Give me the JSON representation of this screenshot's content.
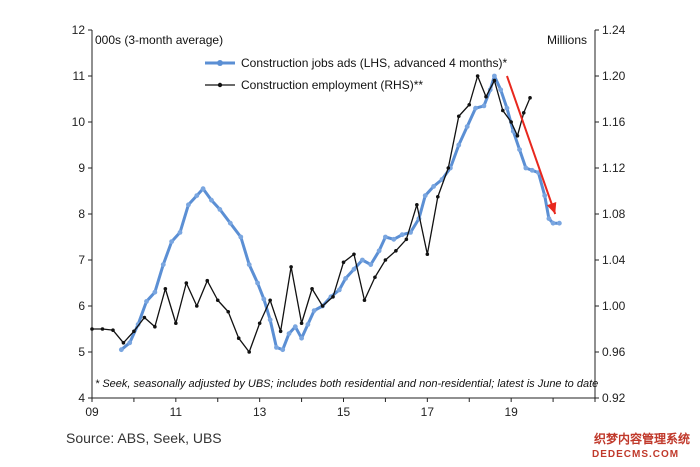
{
  "chart_data": {
    "type": "line",
    "left_axis_label": "000s (3-month average)",
    "right_axis_label": "Millions",
    "x_ticks": [
      "09",
      "11",
      "13",
      "15",
      "17",
      "19"
    ],
    "x_tick_values": [
      2009,
      2011,
      2013,
      2015,
      2017,
      2019
    ],
    "x_range": [
      2009,
      2021
    ],
    "left_ylim": [
      4,
      12
    ],
    "left_y_ticks": [
      "4",
      "5",
      "6",
      "7",
      "8",
      "9",
      "10",
      "11",
      "12"
    ],
    "right_ylim": [
      0.92,
      1.24
    ],
    "right_y_ticks": [
      "0.92",
      "0.96",
      "1.00",
      "1.04",
      "1.08",
      "1.12",
      "1.16",
      "1.20",
      "1.24"
    ],
    "series": [
      {
        "name": "Construction jobs ads (LHS, advanced 4 months)*",
        "axis": "left",
        "color": "#5b8fd4",
        "points": [
          [
            2009.7,
            5.05
          ],
          [
            2009.9,
            5.2
          ],
          [
            2010.1,
            5.6
          ],
          [
            2010.3,
            6.1
          ],
          [
            2010.5,
            6.3
          ],
          [
            2010.7,
            6.9
          ],
          [
            2010.9,
            7.4
          ],
          [
            2011.1,
            7.6
          ],
          [
            2011.3,
            8.2
          ],
          [
            2011.5,
            8.4
          ],
          [
            2011.65,
            8.55
          ],
          [
            2011.85,
            8.3
          ],
          [
            2012.05,
            8.1
          ],
          [
            2012.3,
            7.8
          ],
          [
            2012.55,
            7.5
          ],
          [
            2012.75,
            6.9
          ],
          [
            2012.95,
            6.5
          ],
          [
            2013.1,
            6.15
          ],
          [
            2013.25,
            5.7
          ],
          [
            2013.4,
            5.1
          ],
          [
            2013.55,
            5.05
          ],
          [
            2013.7,
            5.4
          ],
          [
            2013.85,
            5.55
          ],
          [
            2014.0,
            5.3
          ],
          [
            2014.15,
            5.6
          ],
          [
            2014.3,
            5.9
          ],
          [
            2014.5,
            6.0
          ],
          [
            2014.7,
            6.2
          ],
          [
            2014.9,
            6.35
          ],
          [
            2015.05,
            6.6
          ],
          [
            2015.25,
            6.8
          ],
          [
            2015.45,
            7.0
          ],
          [
            2015.65,
            6.9
          ],
          [
            2015.85,
            7.2
          ],
          [
            2016.0,
            7.5
          ],
          [
            2016.2,
            7.45
          ],
          [
            2016.4,
            7.55
          ],
          [
            2016.6,
            7.6
          ],
          [
            2016.8,
            7.9
          ],
          [
            2016.95,
            8.4
          ],
          [
            2017.15,
            8.6
          ],
          [
            2017.35,
            8.75
          ],
          [
            2017.55,
            9.0
          ],
          [
            2017.75,
            9.5
          ],
          [
            2017.95,
            9.9
          ],
          [
            2018.15,
            10.3
          ],
          [
            2018.35,
            10.35
          ],
          [
            2018.5,
            10.7
          ],
          [
            2018.6,
            11.0
          ],
          [
            2018.75,
            10.7
          ],
          [
            2018.9,
            10.3
          ],
          [
            2019.05,
            9.8
          ],
          [
            2019.2,
            9.4
          ],
          [
            2019.35,
            9.0
          ],
          [
            2019.5,
            8.95
          ],
          [
            2019.65,
            8.9
          ],
          [
            2019.8,
            8.4
          ],
          [
            2019.9,
            7.9
          ],
          [
            2020.0,
            7.8
          ],
          [
            2020.15,
            7.8
          ]
        ]
      },
      {
        "name": "Construction employment (RHS)**",
        "axis": "right",
        "color": "#111111",
        "points": [
          [
            2009.0,
            0.98
          ],
          [
            2009.25,
            0.98
          ],
          [
            2009.5,
            0.979
          ],
          [
            2009.75,
            0.968
          ],
          [
            2010.0,
            0.978
          ],
          [
            2010.25,
            0.99
          ],
          [
            2010.5,
            0.982
          ],
          [
            2010.75,
            1.015
          ],
          [
            2011.0,
            0.985
          ],
          [
            2011.25,
            1.02
          ],
          [
            2011.5,
            1.0
          ],
          [
            2011.75,
            1.022
          ],
          [
            2012.0,
            1.005
          ],
          [
            2012.25,
            0.995
          ],
          [
            2012.5,
            0.972
          ],
          [
            2012.75,
            0.96
          ],
          [
            2013.0,
            0.985
          ],
          [
            2013.25,
            1.005
          ],
          [
            2013.5,
            0.978
          ],
          [
            2013.75,
            1.034
          ],
          [
            2014.0,
            0.985
          ],
          [
            2014.25,
            1.015
          ],
          [
            2014.5,
            1.0
          ],
          [
            2014.75,
            1.008
          ],
          [
            2015.0,
            1.038
          ],
          [
            2015.25,
            1.045
          ],
          [
            2015.5,
            1.005
          ],
          [
            2015.75,
            1.025
          ],
          [
            2016.0,
            1.04
          ],
          [
            2016.25,
            1.048
          ],
          [
            2016.5,
            1.058
          ],
          [
            2016.75,
            1.088
          ],
          [
            2017.0,
            1.045
          ],
          [
            2017.25,
            1.095
          ],
          [
            2017.5,
            1.12
          ],
          [
            2017.75,
            1.165
          ],
          [
            2018.0,
            1.175
          ],
          [
            2018.2,
            1.2
          ],
          [
            2018.4,
            1.182
          ],
          [
            2018.6,
            1.196
          ],
          [
            2018.8,
            1.17
          ],
          [
            2019.0,
            1.16
          ],
          [
            2019.15,
            1.148
          ],
          [
            2019.3,
            1.168
          ],
          [
            2019.45,
            1.181
          ]
        ]
      }
    ],
    "trend_arrow": {
      "color": "#e8281e",
      "from": [
        2018.9,
        11.0
      ],
      "to": [
        2020.05,
        8.0
      ]
    },
    "footnote": "* Seek, seasonally adjusted by UBS; includes both residential and non-residential; latest is June to date",
    "source": "Source:  ABS, Seek, UBS",
    "grid": false,
    "legend_position": "top-center"
  },
  "watermark": {
    "line1": "织梦内容管理系统",
    "line2": "DEDECMS.COM"
  }
}
